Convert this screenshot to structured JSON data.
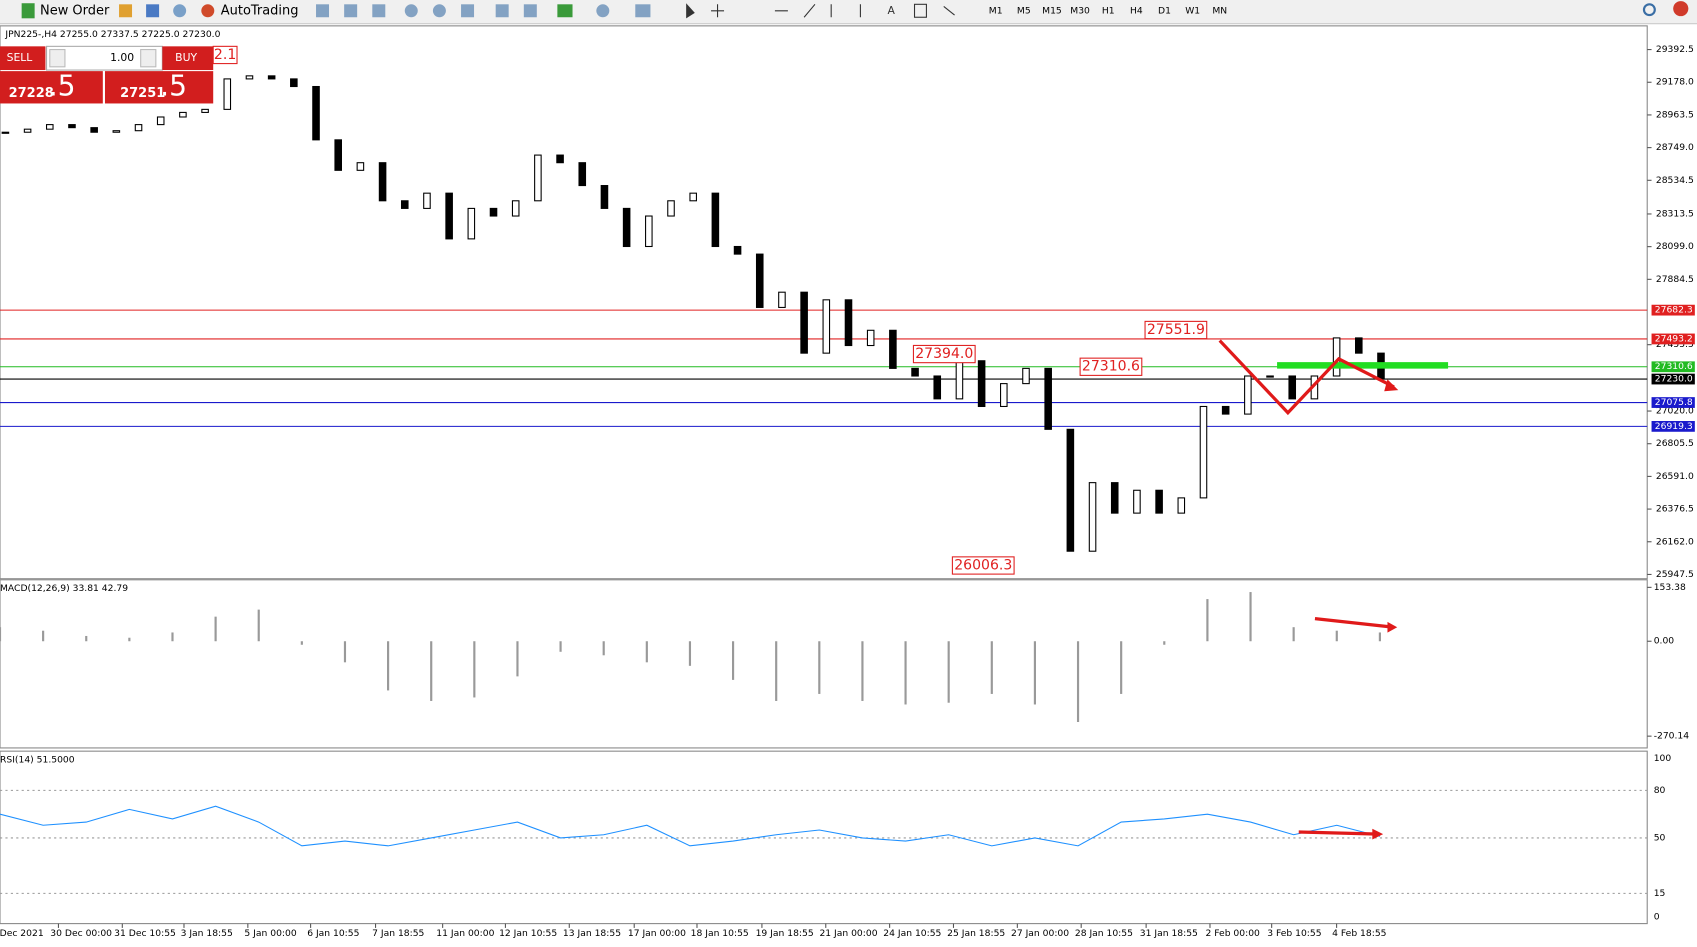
{
  "toolbar": {
    "new_order": "New Order",
    "auto_trading": "AutoTrading",
    "timeframes": [
      "M1",
      "M5",
      "M15",
      "M30",
      "H1",
      "H4",
      "D1",
      "W1",
      "MN"
    ]
  },
  "trade_panel": {
    "sell": "SELL",
    "lot": "1.00",
    "buy": "BUY",
    "bid_main": "27228",
    "bid_big": ".5",
    "ask_main": "27251",
    "ask_big": ".5"
  },
  "chart": {
    "symbol_info": "JPN225-,H4 27255.0 27337.5 27225.0 27230.0",
    "price_ticks": [
      29392.5,
      {
        "value": 29178,
        "label": "29178.0"
      },
      28963.5,
      {
        "value": 28749,
        "label": "28749.0"
      },
      28534.5,
      28313.5,
      {
        "value": 28099,
        "label": "28099.0"
      },
      27884.5,
      27455.5,
      {
        "value": 27020,
        "label": "27020.0"
      },
      26805.5,
      {
        "value": 26591,
        "label": "26591.0"
      },
      26376.5,
      {
        "value": 26162,
        "label": "26162.0"
      },
      25947.5
    ],
    "levels": [
      {
        "value": 27682.3,
        "color": "#e02020"
      },
      {
        "value": 27493.2,
        "color": "#e02020"
      },
      {
        "value": 27310.6,
        "color": "#22bb22"
      },
      {
        "value": 27230,
        "label": "27230.0",
        "color": "#000000"
      },
      {
        "value": 27075.8,
        "color": "#1a1acc"
      },
      {
        "value": 26919.3,
        "color": "#1a1acc"
      }
    ],
    "annotations": [
      {
        "value": 27551.9
      },
      {
        "value": 27394,
        "label": "27394.0"
      },
      {
        "value": 27310.6
      },
      {
        "value": 26006.3
      }
    ],
    "partial_annotation": "2.1",
    "closes": [
      28850,
      28870,
      28900,
      28880,
      28850,
      28860,
      28900,
      28950,
      28980,
      29000,
      29200,
      29220,
      29200,
      29150,
      28800,
      28600,
      28650,
      28400,
      28350,
      28450,
      28150,
      28350,
      28300,
      28400,
      28700,
      28650,
      28500,
      28350,
      28100,
      28300,
      28400,
      28450,
      28100,
      28050,
      27700,
      27800,
      27400,
      27750,
      27450,
      27550,
      27300,
      27250,
      27100,
      27350,
      27050,
      27200,
      27300,
      26900,
      26100,
      26550,
      26350,
      26500,
      26350,
      26450,
      27050,
      27000,
      27250,
      27250,
      27100,
      27250,
      27500,
      27400,
      27230
    ],
    "macd": {
      "label": "MACD(12,26,9) 33.81 42.79",
      "ticks": [
        153.38,
        {
          "value": 0,
          "label": "0.00"
        },
        -270.14
      ],
      "values": [
        40,
        30,
        15,
        10,
        25,
        70,
        90,
        -10,
        -60,
        -140,
        -170,
        -160,
        -100,
        -30,
        -40,
        -60,
        -70,
        -110,
        -170,
        -150,
        -170,
        -180,
        -175,
        -150,
        -180,
        -230,
        -150,
        -10,
        120,
        140,
        40,
        30,
        25
      ]
    },
    "rsi": {
      "label": "RSI(14) 51.5000",
      "ticks": [
        100,
        80,
        50,
        15,
        0
      ],
      "values": [
        65,
        58,
        60,
        68,
        62,
        70,
        60,
        45,
        48,
        45,
        50,
        55,
        60,
        50,
        52,
        58,
        45,
        48,
        52,
        55,
        50,
        48,
        52,
        45,
        50,
        45,
        60,
        62,
        65,
        60,
        52,
        58,
        51
      ]
    },
    "dates": [
      "Dec 2021",
      "30 Dec 00:00",
      "31 Dec 10:55",
      "3 Jan 18:55",
      "5 Jan 00:00",
      "6 Jan 10:55",
      "7 Jan 18:55",
      "11 Jan 00:00",
      "12 Jan 10:55",
      "13 Jan 18:55",
      "17 Jan 00:00",
      "18 Jan 10:55",
      "19 Jan 18:55",
      "21 Jan 00:00",
      "24 Jan 10:55",
      "25 Jan 18:55",
      "27 Jan 00:00",
      "28 Jan 10:55",
      "31 Jan 18:55",
      "2 Feb 00:00",
      "3 Feb 10:55",
      "4 Feb 18:55"
    ]
  }
}
